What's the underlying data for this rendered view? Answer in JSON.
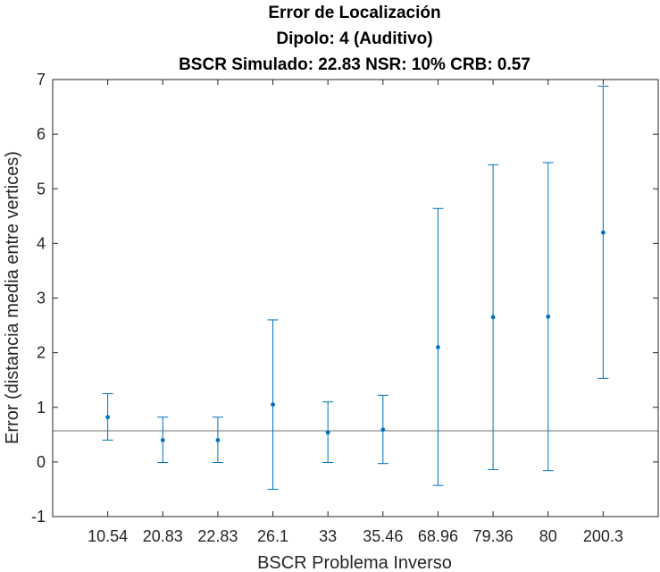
{
  "chart_data": {
    "type": "scatter",
    "title": "Error de Localización",
    "subtitle": "Dipolo: 4 (Auditivo)",
    "subtitle2": "BSCR Simulado: 22.83 NSR: 10% CRB: 0.57",
    "xlabel": "BSCR Problema Inverso",
    "ylabel": "Error (distancia media entre vertices)",
    "categories": [
      "10.54",
      "20.83",
      "22.83",
      "26.1",
      "33",
      "35.46",
      "68.96",
      "79.36",
      "80",
      "200.3"
    ],
    "series": [
      {
        "values": [
          0.82,
          0.4,
          0.4,
          1.05,
          0.54,
          0.59,
          2.1,
          2.65,
          2.66,
          4.2
        ],
        "lower": [
          0.4,
          -0.01,
          -0.01,
          -0.5,
          -0.01,
          -0.03,
          -0.43,
          -0.14,
          -0.16,
          1.53
        ],
        "upper": [
          1.25,
          0.82,
          0.82,
          2.6,
          1.1,
          1.22,
          4.64,
          5.44,
          5.48,
          6.88
        ],
        "color": "#0072BD"
      }
    ],
    "reference_line": {
      "y": 0.57,
      "color": "#404040"
    },
    "ylim": [
      -1,
      7
    ],
    "yticks": [
      "-1",
      "0",
      "1",
      "2",
      "3",
      "4",
      "5",
      "6",
      "7"
    ],
    "grid": false,
    "legend": false
  }
}
